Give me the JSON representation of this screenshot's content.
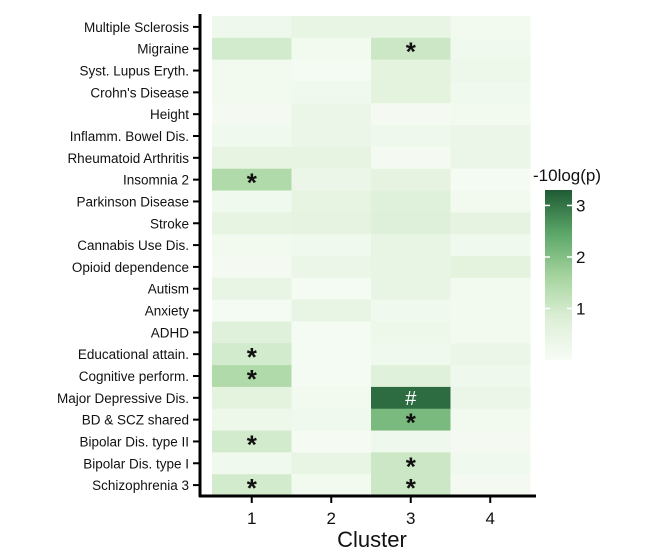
{
  "chart_data": {
    "type": "heatmap",
    "title": "",
    "xlabel": "Cluster",
    "ylabel": "",
    "x_categories": [
      "1",
      "2",
      "3",
      "4"
    ],
    "y_categories": [
      "Multiple Sclerosis",
      "Migraine",
      "Syst. Lupus Eryth.",
      "Crohn's Disease",
      "Height",
      "Inflamm. Bowel Dis.",
      "Rheumatoid Arthritis",
      "Insomnia 2",
      "Parkinson Disease",
      "Stroke",
      "Cannabis Use Dis.",
      "Opioid dependence",
      "Autism",
      "Anxiety",
      "ADHD",
      "Educational attain.",
      "Cognitive perform.",
      "Major Depressive Dis.",
      "BD & SCZ shared",
      "Bipolar Dis. type II",
      "Bipolar Dis. type I",
      "Schizophrenia 3"
    ],
    "values": [
      [
        0.25,
        0.45,
        0.45,
        0.15
      ],
      [
        0.95,
        0.15,
        1.05,
        0.2
      ],
      [
        0.15,
        0.08,
        0.6,
        0.3
      ],
      [
        0.15,
        0.2,
        0.6,
        0.2
      ],
      [
        0.1,
        0.35,
        0.1,
        0.15
      ],
      [
        0.2,
        0.35,
        0.25,
        0.35
      ],
      [
        0.5,
        0.5,
        0.1,
        0.35
      ],
      [
        1.45,
        0.35,
        0.55,
        0.08
      ],
      [
        0.2,
        0.5,
        0.7,
        0.15
      ],
      [
        0.5,
        0.55,
        0.75,
        0.55
      ],
      [
        0.15,
        0.2,
        0.45,
        0.2
      ],
      [
        0.1,
        0.35,
        0.45,
        0.6
      ],
      [
        0.45,
        0.08,
        0.45,
        0.15
      ],
      [
        0.08,
        0.45,
        0.2,
        0.15
      ],
      [
        0.7,
        0.08,
        0.3,
        0.15
      ],
      [
        0.95,
        0.08,
        0.2,
        0.35
      ],
      [
        1.45,
        0.08,
        0.7,
        0.25
      ],
      [
        0.6,
        0.15,
        3.1,
        0.35
      ],
      [
        0.3,
        0.2,
        2.1,
        0.15
      ],
      [
        0.95,
        0.05,
        0.25,
        0.1
      ],
      [
        0.2,
        0.45,
        1.05,
        0.2
      ],
      [
        0.95,
        0.15,
        1.05,
        0.1
      ]
    ],
    "annotations": [
      {
        "row": "Migraine",
        "col": "3",
        "mark": "*"
      },
      {
        "row": "Insomnia 2",
        "col": "1",
        "mark": "*"
      },
      {
        "row": "Educational attain.",
        "col": "1",
        "mark": "*"
      },
      {
        "row": "Cognitive perform.",
        "col": "1",
        "mark": "*"
      },
      {
        "row": "Major Depressive Dis.",
        "col": "3",
        "mark": "#"
      },
      {
        "row": "BD & SCZ shared",
        "col": "3",
        "mark": "*"
      },
      {
        "row": "Bipolar Dis. type II",
        "col": "1",
        "mark": "*"
      },
      {
        "row": "Bipolar Dis. type I",
        "col": "3",
        "mark": "*"
      },
      {
        "row": "Schizophrenia 3",
        "col": "1",
        "mark": "*"
      },
      {
        "row": "Schizophrenia 3",
        "col": "3",
        "mark": "*"
      }
    ],
    "colorbar": {
      "title": "-10log(p)",
      "range": [
        0,
        3.3
      ],
      "ticks": [
        1,
        2,
        3
      ],
      "low_color": "#f7fcf5",
      "high_color": "#1f5a34"
    },
    "legend_position": "right",
    "grid": false
  }
}
